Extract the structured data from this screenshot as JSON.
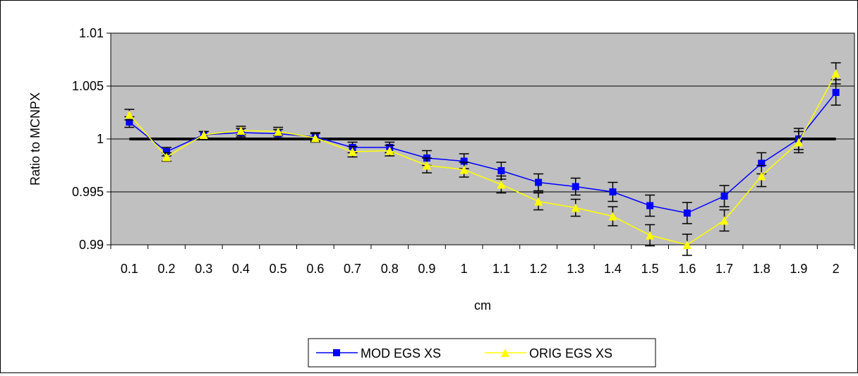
{
  "chart_data": {
    "type": "line",
    "title": "",
    "xlabel": "cm",
    "ylabel": "Ratio to MCNPX",
    "categories": [
      "0.1",
      "0.2",
      "0.3",
      "0.4",
      "0.5",
      "0.6",
      "0.7",
      "0.8",
      "0.9",
      "1",
      "1.1",
      "1.2",
      "1.3",
      "1.4",
      "1.5",
      "1.6",
      "1.7",
      "1.8",
      "1.9",
      "2"
    ],
    "ylim": [
      0.99,
      1.01
    ],
    "yticks": [
      "0.99",
      "0.995",
      "1",
      "1.005",
      "1.01"
    ],
    "reference_line": 1.0,
    "grid": true,
    "plot_background": "#c0c0c0",
    "legend_position": "bottom",
    "series": [
      {
        "name": "MOD EGS XS",
        "color": "#0000ff",
        "marker": "square",
        "values": [
          1.0016,
          0.9988,
          1.0004,
          1.0006,
          1.0005,
          1.0002,
          0.9992,
          0.9992,
          0.9982,
          0.9979,
          0.997,
          0.9959,
          0.9955,
          0.995,
          0.9937,
          0.993,
          0.9946,
          0.9977,
          1.0,
          1.0044
        ],
        "errors": [
          0.0005,
          0.0004,
          0.0003,
          0.0004,
          0.0004,
          0.0004,
          0.0005,
          0.0005,
          0.0007,
          0.0007,
          0.0008,
          0.0008,
          0.0008,
          0.0009,
          0.001,
          0.001,
          0.001,
          0.001,
          0.001,
          0.0012
        ]
      },
      {
        "name": "ORIG EGS XS",
        "color": "#ffff00",
        "marker": "triangle",
        "values": [
          1.0023,
          0.9983,
          1.0004,
          1.0008,
          1.0007,
          1.0001,
          0.9988,
          0.9989,
          0.9975,
          0.9971,
          0.9957,
          0.9941,
          0.9935,
          0.9927,
          0.9909,
          0.99,
          0.9923,
          0.9965,
          0.9997,
          1.0062
        ],
        "errors": [
          0.0005,
          0.0004,
          0.0003,
          0.0004,
          0.0004,
          0.0004,
          0.0005,
          0.0005,
          0.0007,
          0.0007,
          0.0008,
          0.0008,
          0.0008,
          0.0009,
          0.001,
          0.001,
          0.001,
          0.001,
          0.001,
          0.001
        ]
      }
    ]
  }
}
